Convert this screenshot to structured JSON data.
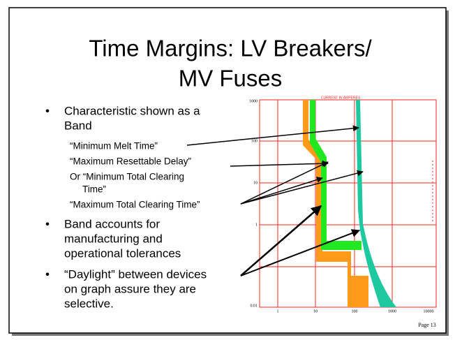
{
  "slide": {
    "title": [
      "Time Margins: LV Breakers/",
      "MV Fuses"
    ],
    "bullets": [
      {
        "lines": [
          "Characteristic shown as a",
          "Band"
        ],
        "subitems": [
          [
            "“Minimum Melt Time”"
          ],
          [
            "“Maximum Resettable Delay”"
          ],
          [
            "Or “Minimum Total Clearing",
            "Time”"
          ],
          [
            "“Maximum Total Clearing Time”"
          ]
        ]
      },
      {
        "lines": [
          "Band accounts for",
          "manufacturing and",
          "operational tolerances"
        ],
        "subitems": []
      },
      {
        "lines": [
          "“Daylight” between devices",
          "on graph assure they are",
          "selective."
        ],
        "subitems": []
      }
    ],
    "graph": {
      "heading": "CURRENT IN AMPERES",
      "y_labels": [
        "1000",
        "100",
        "10",
        "1",
        "0.01"
      ],
      "x_labels": [
        "1",
        "10",
        "100",
        "1000",
        "10000"
      ]
    },
    "page": "Page 13"
  }
}
